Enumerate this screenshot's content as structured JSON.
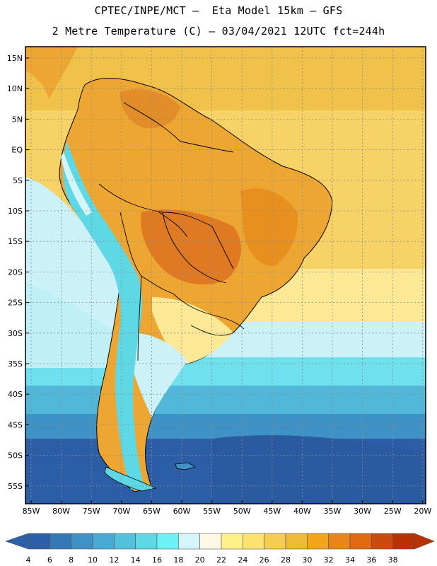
{
  "title_line1": "CPTEC/INPE/MCT –  Eta Model 15km – GFS",
  "title_line2": "2 Metre Temperature (C) – 03/04/2021 12UTC fct=244h",
  "lat_labels": [
    "15N",
    "10N",
    "5N",
    "EQ",
    "5S",
    "10S",
    "15S",
    "20S",
    "25S",
    "30S",
    "35S",
    "40S",
    "45S",
    "50S",
    "55S"
  ],
  "lon_labels": [
    "85W",
    "80W",
    "75W",
    "70W",
    "65W",
    "60W",
    "55W",
    "50W",
    "45W",
    "40W",
    "35W",
    "30W",
    "25W",
    "20W"
  ],
  "colorbar": {
    "labels": [
      "4",
      "6",
      "8",
      "10",
      "12",
      "14",
      "16",
      "18",
      "20",
      "22",
      "24",
      "26",
      "28",
      "30",
      "32",
      "34",
      "36",
      "38"
    ],
    "colors": [
      "#2b60a8",
      "#3578b8",
      "#3e92c6",
      "#46aad4",
      "#52c2dc",
      "#5fd8e6",
      "#6cf2f4",
      "#d4f6fb",
      "#fff8e4",
      "#fff08a",
      "#fde272",
      "#f5cd52",
      "#eebb38",
      "#f3a41a",
      "#e8861e",
      "#df6a12",
      "#cc4a0c",
      "#b83204"
    ]
  },
  "map_colors": {
    "ocean_cold": "#2b5ea6",
    "ocean_cool": "#3f8fc3",
    "ocean_mild": "#52b6d8",
    "ocean_teal": "#6fe0ee",
    "ocean_pale": "#cff2fa",
    "ocean_warm": "#fde79a",
    "ocean_hot": "#f5cb55",
    "land_hot": "#eea632",
    "land_very_hot": "#df7a22",
    "andes": "#5fd8e6",
    "grid": "#888888",
    "border": "#000000"
  }
}
